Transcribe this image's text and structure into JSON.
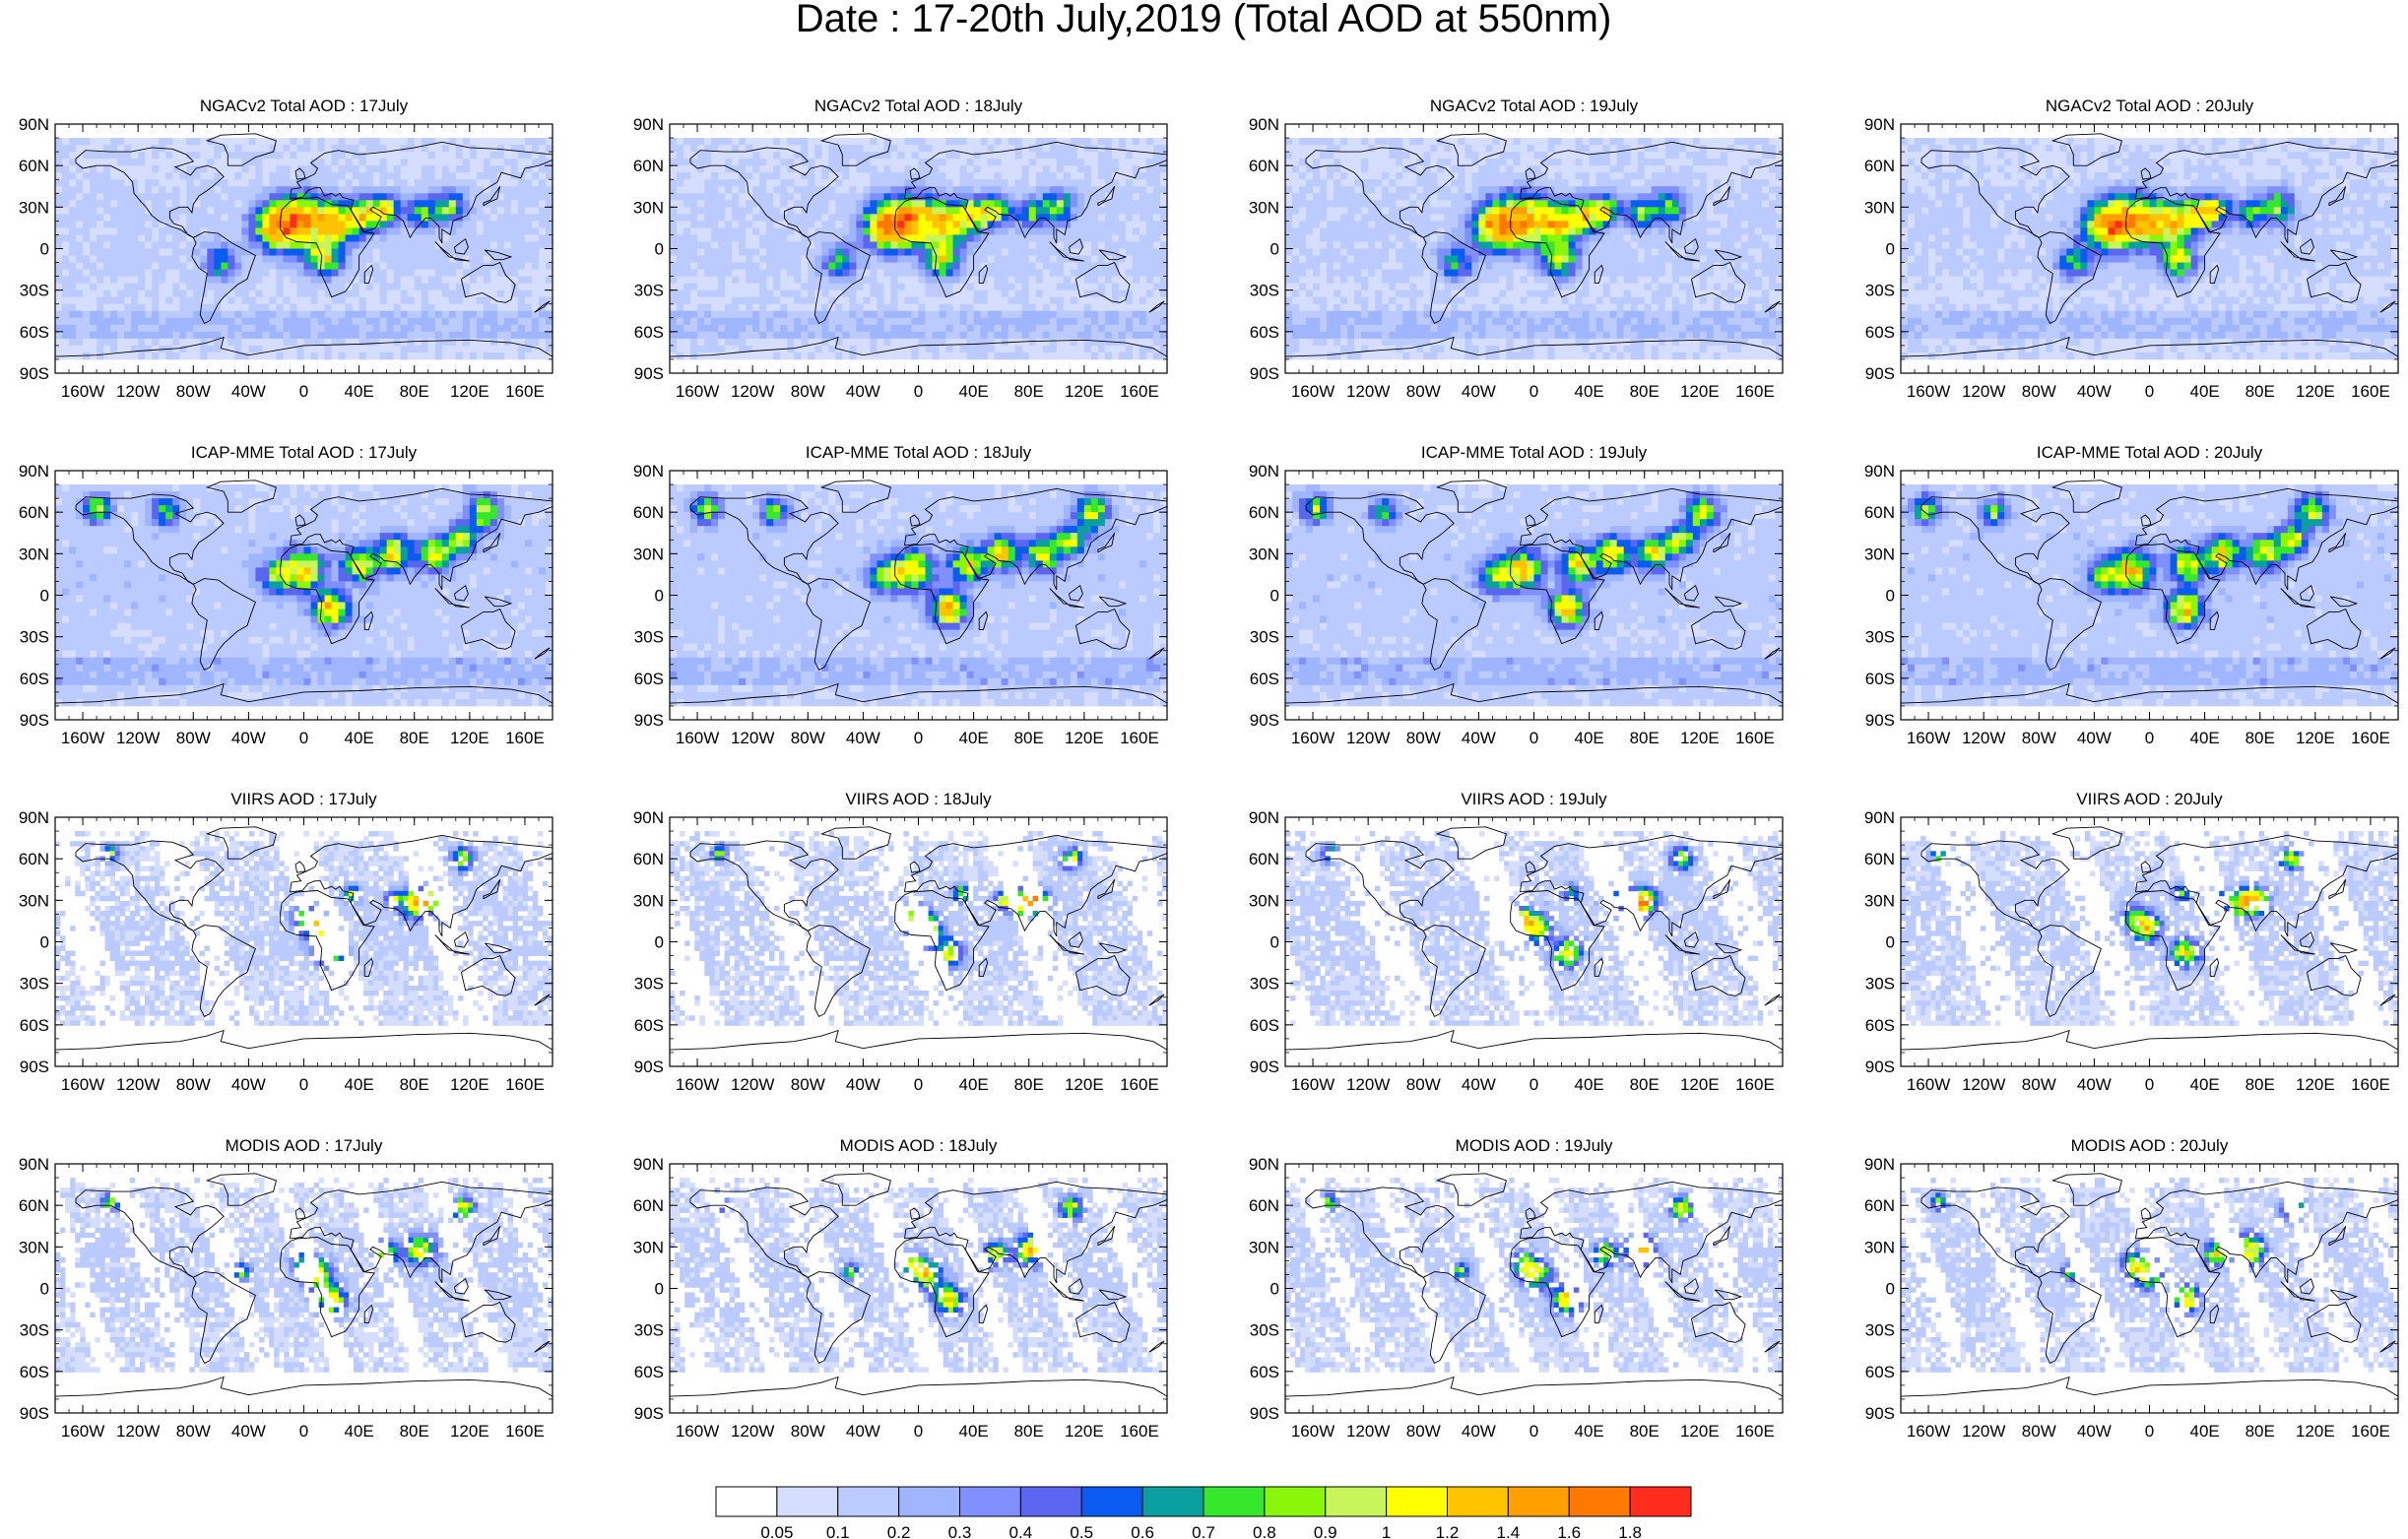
{
  "title": "Date : 17-20th July,2019 (Total AOD at 550nm)",
  "chart_data": {
    "type": "heatmap",
    "title": "Date : 17-20th July,2019 (Total AOD at 550nm)",
    "grid": false,
    "xlim": [
      -180,
      180
    ],
    "ylim": [
      -90,
      90
    ],
    "x_ticks": [
      "160W",
      "120W",
      "80W",
      "40W",
      "0",
      "40E",
      "80E",
      "120E",
      "160E"
    ],
    "y_ticks": [
      "90N",
      "60N",
      "30N",
      "0",
      "30S",
      "60S",
      "90S"
    ],
    "colorbar": {
      "levels": [
        "0.05",
        "0.1",
        "0.2",
        "0.3",
        "0.4",
        "0.5",
        "0.6",
        "0.7",
        "0.8",
        "0.9",
        "1",
        "1.2",
        "1.4",
        "1.6",
        "1.8"
      ],
      "colors": [
        "#ffffff",
        "#d5deff",
        "#bccbff",
        "#9fb5ff",
        "#8090ff",
        "#5a66f0",
        "#0a5cf0",
        "#0aa0a0",
        "#35e82c",
        "#8af70a",
        "#c8f55a",
        "#ffff00",
        "#ffc300",
        "#ffa000",
        "#ff7800",
        "#ff2d1e"
      ],
      "placement": "bottom"
    },
    "panels": [
      {
        "title": "NGACv2 Total AOD : 17July",
        "product": "NGACv2",
        "day": 17
      },
      {
        "title": "NGACv2 Total AOD : 18July",
        "product": "NGACv2",
        "day": 18
      },
      {
        "title": "NGACv2 Total AOD : 19July",
        "product": "NGACv2",
        "day": 19
      },
      {
        "title": "NGACv2 Total AOD : 20July",
        "product": "NGACv2",
        "day": 20
      },
      {
        "title": "ICAP-MME Total AOD : 17July",
        "product": "ICAP-MME",
        "day": 17
      },
      {
        "title": "ICAP-MME Total AOD : 18July",
        "product": "ICAP-MME",
        "day": 18
      },
      {
        "title": "ICAP-MME Total AOD : 19July",
        "product": "ICAP-MME",
        "day": 19
      },
      {
        "title": "ICAP-MME Total AOD : 20July",
        "product": "ICAP-MME",
        "day": 20
      },
      {
        "title": "VIIRS AOD : 17July",
        "product": "VIIRS",
        "day": 17
      },
      {
        "title": "VIIRS AOD : 18July",
        "product": "VIIRS",
        "day": 18
      },
      {
        "title": "VIIRS AOD : 19July",
        "product": "VIIRS",
        "day": 19
      },
      {
        "title": "VIIRS AOD : 20July",
        "product": "VIIRS",
        "day": 20
      },
      {
        "title": "MODIS AOD : 17July",
        "product": "MODIS",
        "day": 17
      },
      {
        "title": "MODIS AOD : 18July",
        "product": "MODIS",
        "day": 18
      },
      {
        "title": "MODIS AOD : 19July",
        "product": "MODIS",
        "day": 19
      },
      {
        "title": "MODIS AOD : 20July",
        "product": "MODIS",
        "day": 20
      }
    ]
  }
}
